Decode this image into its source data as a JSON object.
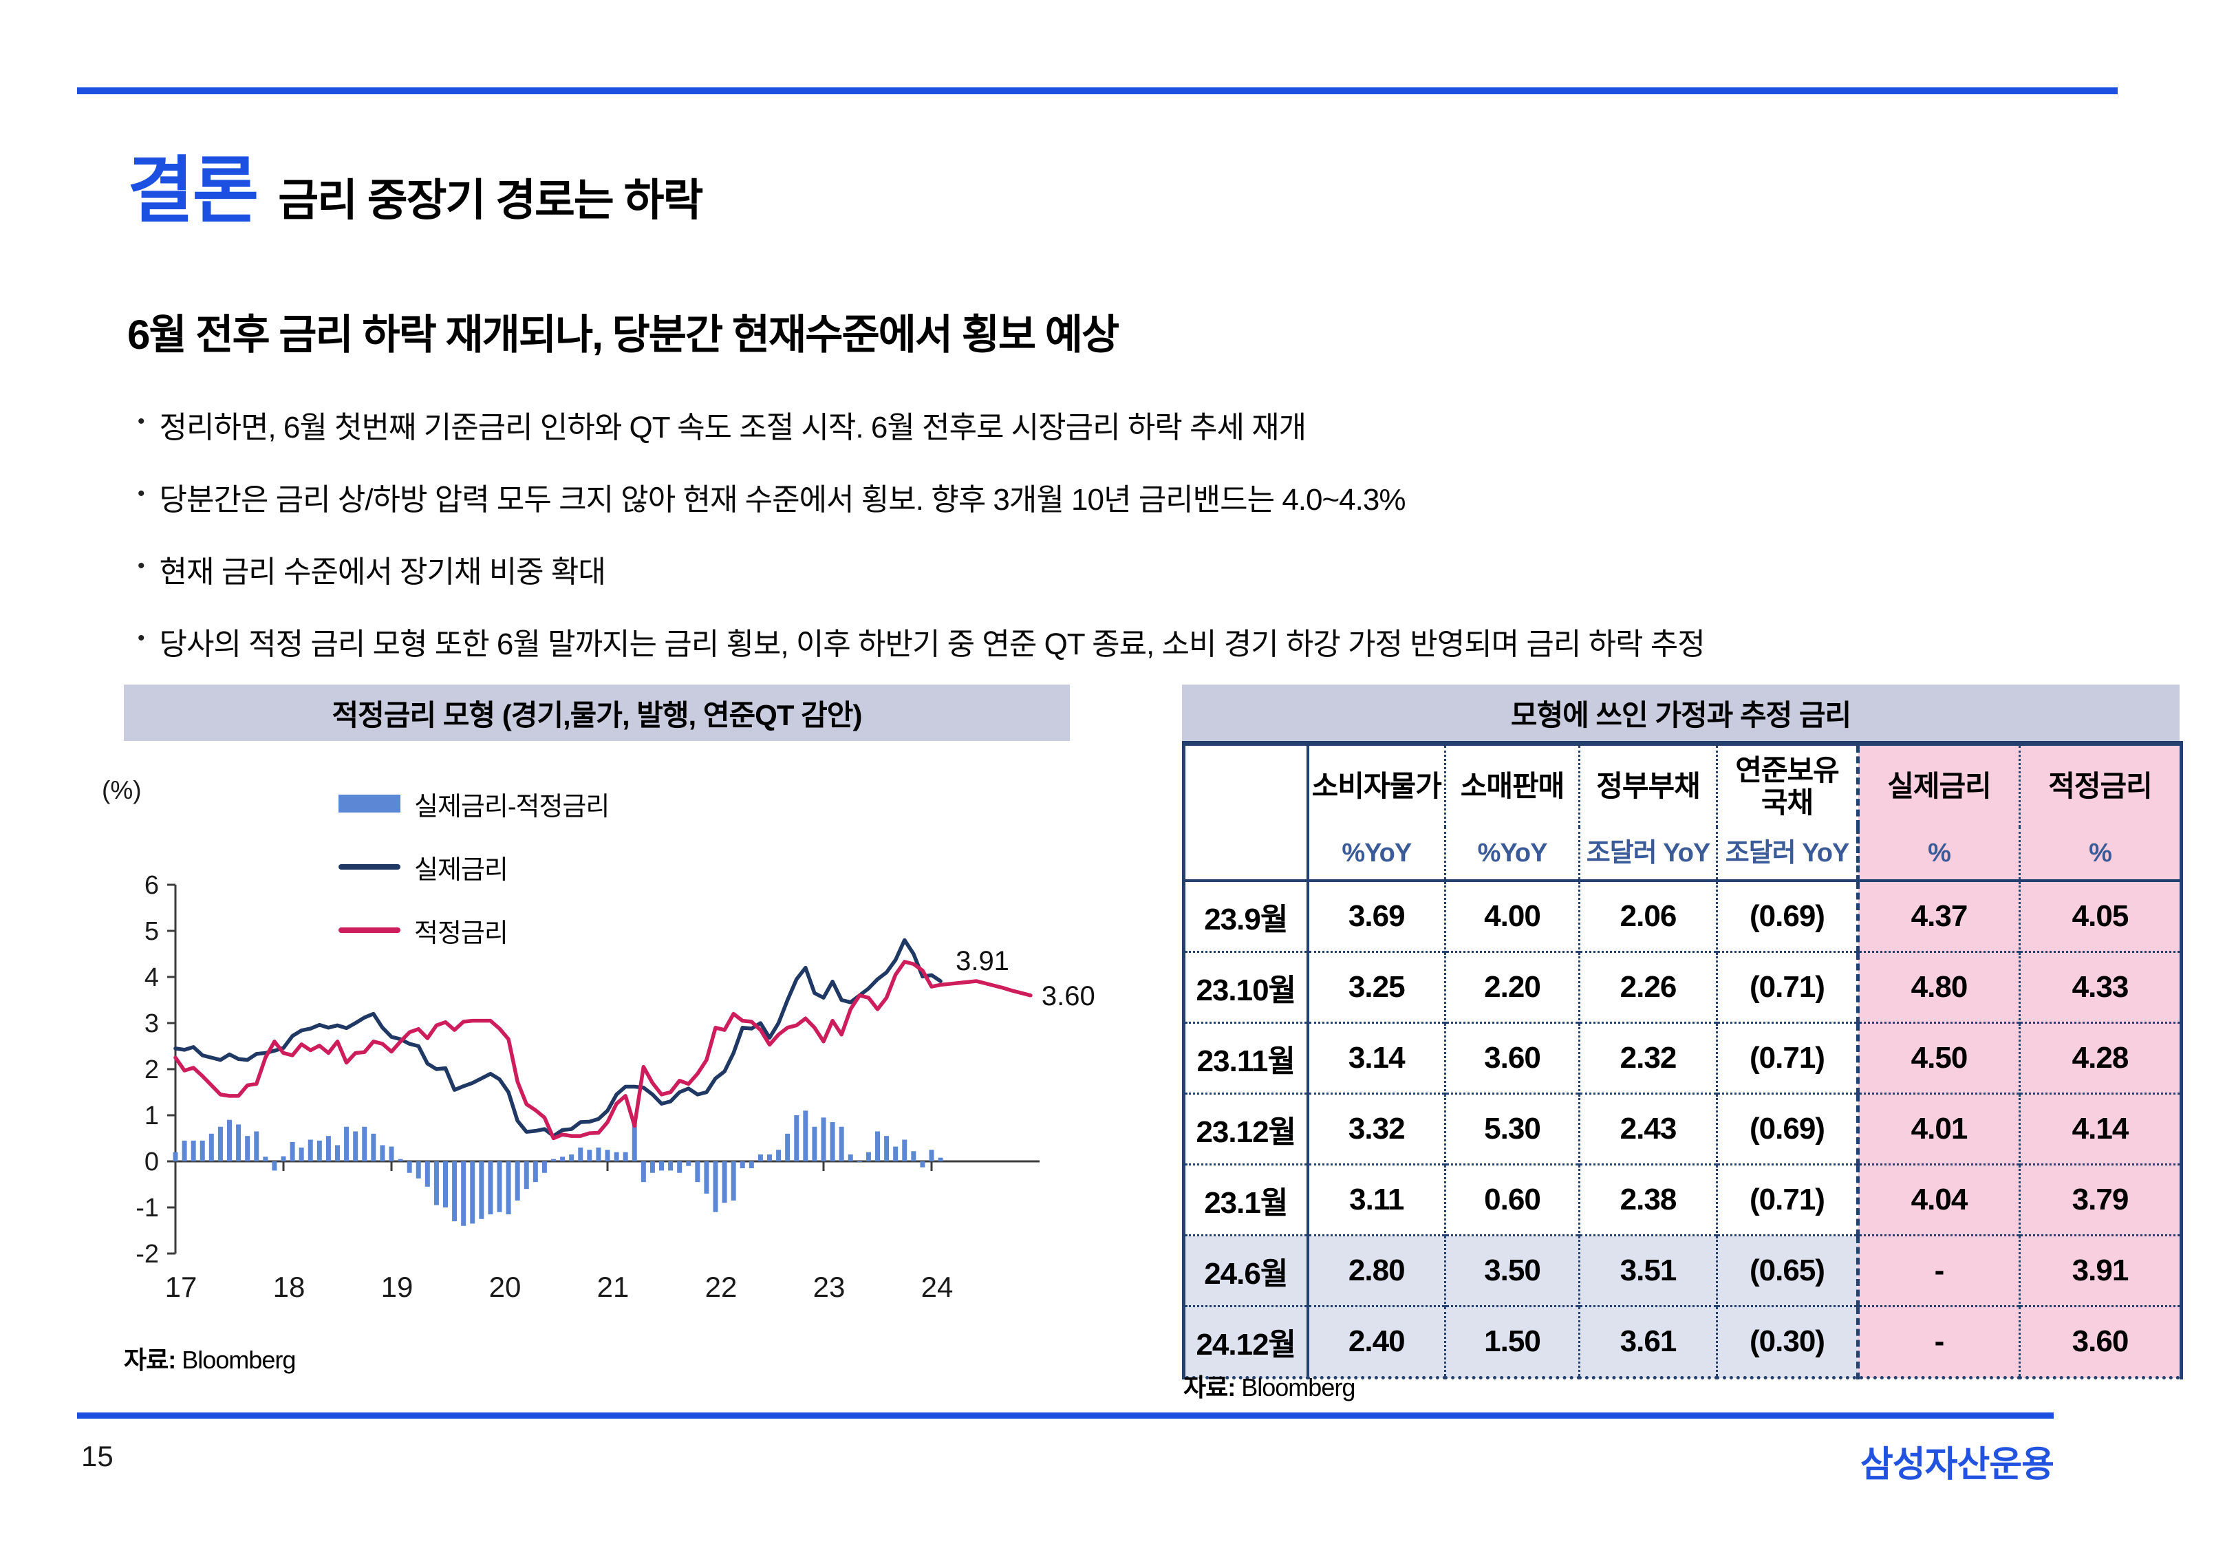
{
  "header": {
    "title_highlight": "결론",
    "title_rest": "금리 중장기 경로는 하락",
    "subtitle": "6월 전후 금리 하락 재개되나, 당분간 현재수준에서 횡보 예상"
  },
  "bullets": [
    "정리하면, 6월 첫번째 기준금리 인하와 QT 속도 조절 시작. 6월 전후로 시장금리 하락 추세 재개",
    "당분간은 금리 상/하방 압력 모두 크지 않아 현재 수준에서 횡보. 향후 3개월 10년 금리밴드는 4.0~4.3%",
    "현재 금리 수준에서 장기채 비중 확대",
    "당사의 적정 금리 모형 또한 6월 말까지는 금리 횡보, 이후 하반기 중 연준 QT 종료, 소비 경기 하강 가정 반영되며 금리 하락 추정"
  ],
  "chart_data": {
    "type": "combo",
    "title": "적정금리 모형 (경기,물가, 발행, 연준QT 감안)",
    "y_unit": "(%)",
    "ylim": [
      -2,
      6
    ],
    "y_ticks": [
      -2,
      -1,
      0,
      1,
      2,
      3,
      4,
      5,
      6
    ],
    "x_tick_labels": [
      "17",
      "18",
      "19",
      "20",
      "21",
      "22",
      "23",
      "24"
    ],
    "x_monthly_start": "2017-01",
    "grid": false,
    "legend_position": "top-left-inside",
    "source": "Bloomberg",
    "source_prefix": "자료:",
    "series": [
      {
        "name": "실제금리-적정금리",
        "type": "bar",
        "color": "#5b87d5",
        "values": [
          0.2,
          0.45,
          0.45,
          0.45,
          0.6,
          0.75,
          0.9,
          0.8,
          0.55,
          0.65,
          0.1,
          -0.2,
          0.11,
          0.42,
          0.3,
          0.47,
          0.45,
          0.55,
          0.35,
          0.75,
          0.65,
          0.75,
          0.6,
          0.35,
          0.32,
          0.05,
          -0.25,
          -0.37,
          -0.55,
          -0.95,
          -1.0,
          -1.3,
          -1.4,
          -1.35,
          -1.25,
          -1.15,
          -1.1,
          -1.15,
          -0.85,
          -0.6,
          -0.45,
          -0.25,
          0.05,
          0.1,
          0.15,
          0.3,
          0.25,
          0.3,
          0.25,
          0.2,
          0.2,
          0.85,
          -0.45,
          -0.25,
          -0.2,
          -0.2,
          -0.25,
          -0.1,
          -0.45,
          -0.7,
          -1.1,
          -0.9,
          -0.85,
          -0.15,
          -0.15,
          0.15,
          0.15,
          0.25,
          0.6,
          1.0,
          1.1,
          0.75,
          0.95,
          0.85,
          0.75,
          0.15,
          0.0,
          0.2,
          0.65,
          0.55,
          0.32,
          0.47,
          0.22,
          -0.13,
          0.25,
          0.08
        ]
      },
      {
        "name": "실제금리",
        "type": "line",
        "color": "#1f3864",
        "end_label": "3.91",
        "values": [
          2.45,
          2.42,
          2.48,
          2.3,
          2.25,
          2.2,
          2.32,
          2.22,
          2.2,
          2.33,
          2.35,
          2.4,
          2.46,
          2.72,
          2.84,
          2.88,
          2.96,
          2.9,
          2.95,
          2.89,
          3.0,
          3.12,
          3.2,
          2.9,
          2.7,
          2.65,
          2.55,
          2.5,
          2.12,
          2.0,
          2.02,
          1.55,
          1.63,
          1.7,
          1.8,
          1.9,
          1.78,
          1.5,
          0.88,
          0.64,
          0.66,
          0.7,
          0.55,
          0.68,
          0.7,
          0.85,
          0.86,
          0.92,
          1.1,
          1.45,
          1.62,
          1.62,
          1.6,
          1.45,
          1.25,
          1.3,
          1.5,
          1.58,
          1.45,
          1.5,
          1.8,
          1.95,
          2.35,
          2.9,
          2.88,
          3.0,
          2.68,
          3.0,
          3.5,
          3.95,
          4.2,
          3.65,
          3.55,
          3.9,
          3.5,
          3.45,
          3.6,
          3.75,
          3.95,
          4.1,
          4.37,
          4.8,
          4.5,
          4.01,
          4.04,
          3.91
        ]
      },
      {
        "name": "적정금리",
        "type": "line",
        "color": "#ce1d5b",
        "end_label": "3.60",
        "values": [
          2.25,
          1.97,
          2.03,
          1.85,
          1.65,
          1.45,
          1.42,
          1.42,
          1.65,
          1.68,
          2.25,
          2.6,
          2.35,
          2.3,
          2.54,
          2.41,
          2.51,
          2.35,
          2.6,
          2.14,
          2.35,
          2.37,
          2.6,
          2.55,
          2.38,
          2.6,
          2.8,
          2.87,
          2.67,
          2.95,
          3.02,
          2.85,
          3.03,
          3.05,
          3.05,
          3.05,
          2.88,
          2.65,
          1.73,
          1.24,
          1.11,
          0.95,
          0.5,
          0.58,
          0.55,
          0.55,
          0.61,
          0.62,
          0.85,
          1.25,
          1.42,
          0.77,
          2.05,
          1.7,
          1.45,
          1.5,
          1.75,
          1.68,
          1.9,
          2.2,
          2.9,
          2.85,
          3.2,
          3.05,
          3.03,
          2.85,
          2.53,
          2.75,
          2.9,
          2.95,
          3.1,
          2.9,
          2.6,
          3.05,
          2.75,
          3.3,
          3.6,
          3.55,
          3.3,
          3.55,
          4.05,
          4.33,
          4.28,
          4.14,
          3.79,
          3.83,
          3.85,
          3.87,
          3.89,
          3.91,
          3.86,
          3.81,
          3.76,
          3.7,
          3.65,
          3.6
        ]
      }
    ]
  },
  "table": {
    "title": "모형에 쓰인 가정과 추정 금리",
    "columns": [
      "소비자물가",
      "소매판매",
      "정부부채",
      "연준보유\n국채",
      "실제금리",
      "적정금리"
    ],
    "units": [
      "%YoY",
      "%YoY",
      "조달러 YoY",
      "조달러 YoY",
      "%",
      "%"
    ],
    "rows": [
      {
        "label": "23.9월",
        "values": [
          "3.69",
          "4.00",
          "2.06",
          "(0.69)",
          "4.37",
          "4.05"
        ],
        "forecast": false
      },
      {
        "label": "23.10월",
        "values": [
          "3.25",
          "2.20",
          "2.26",
          "(0.71)",
          "4.80",
          "4.33"
        ],
        "forecast": false
      },
      {
        "label": "23.11월",
        "values": [
          "3.14",
          "3.60",
          "2.32",
          "(0.71)",
          "4.50",
          "4.28"
        ],
        "forecast": false
      },
      {
        "label": "23.12월",
        "values": [
          "3.32",
          "5.30",
          "2.43",
          "(0.69)",
          "4.01",
          "4.14"
        ],
        "forecast": false
      },
      {
        "label": "23.1월",
        "values": [
          "3.11",
          "0.60",
          "2.38",
          "(0.71)",
          "4.04",
          "3.79"
        ],
        "forecast": false
      },
      {
        "label": "24.6월",
        "values": [
          "2.80",
          "3.50",
          "3.51",
          "(0.65)",
          "-",
          "3.91"
        ],
        "forecast": true
      },
      {
        "label": "24.12월",
        "values": [
          "2.40",
          "1.50",
          "3.61",
          "(0.30)",
          "-",
          "3.60"
        ],
        "forecast": true
      }
    ],
    "source": "Bloomberg",
    "source_prefix": "자료:"
  },
  "footer": {
    "page_number": "15",
    "logo": "삼성자산운용"
  },
  "colors": {
    "accent_blue": "#1b50e0",
    "navy": "#1f3864",
    "crimson": "#ce1d5b",
    "bar_blue": "#5b87d5",
    "band_bg": "#c9ccdf",
    "pink_bg": "#f8cfde",
    "shade_bg": "#dee2ef",
    "unit_text": "#3a5b97",
    "table_border": "#24406e"
  }
}
